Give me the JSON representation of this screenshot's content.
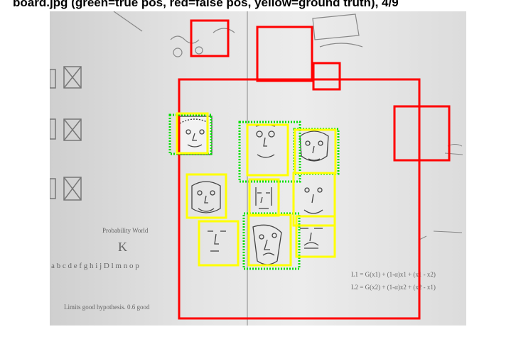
{
  "figure": {
    "title": "board.jpg  (green=true pos, red=false pos, yellow=ground truth), 4/9"
  },
  "image": {
    "scene": "whiteboard-with-face-drawings",
    "whiteboard_text": {
      "probability": "Probability World",
      "k": "K",
      "alphabet": "a b c d e f g h i j D l m n o p",
      "equation1": "L1 = G(x1) + (1-α)x1 + (x1 - x2)",
      "equation2": "L2 = G(x2) + (1-α)x2 + (x2 - x1)",
      "bottom_note": "Limits good hypothesis. 0.6 good"
    }
  },
  "colors": {
    "true_pos": "#00e000",
    "false_pos": "#ff0000",
    "ground_truth": "#ffff00"
  }
}
